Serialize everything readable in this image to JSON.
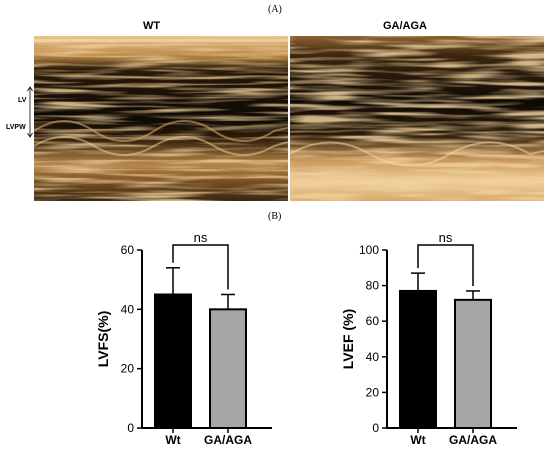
{
  "panel_a_label": "(A)",
  "panel_b_label": "(B)",
  "mmode_panels": [
    {
      "title": "WT"
    },
    {
      "title": "GA/AGA"
    }
  ],
  "mmode_labels": {
    "lv": "LV",
    "lvpw": "LVPW"
  },
  "chart_data": [
    {
      "type": "bar",
      "categories": [
        "Wt",
        "GA/AGA"
      ],
      "values": [
        45,
        40
      ],
      "error_upper": [
        9,
        5
      ],
      "colors": [
        "#000000",
        "#a6a6a6"
      ],
      "ylabel": "LVFS(%)",
      "ylim": [
        0,
        60
      ],
      "yticks": [
        0,
        20,
        40,
        60
      ],
      "significance": "ns"
    },
    {
      "type": "bar",
      "categories": [
        "Wt",
        "GA/AGA"
      ],
      "values": [
        77,
        72
      ],
      "error_upper": [
        10,
        5
      ],
      "colors": [
        "#000000",
        "#a6a6a6"
      ],
      "ylabel": "LVEF (%)",
      "ylim": [
        0,
        100
      ],
      "yticks": [
        0,
        20,
        40,
        60,
        80,
        100
      ],
      "significance": "ns"
    }
  ]
}
